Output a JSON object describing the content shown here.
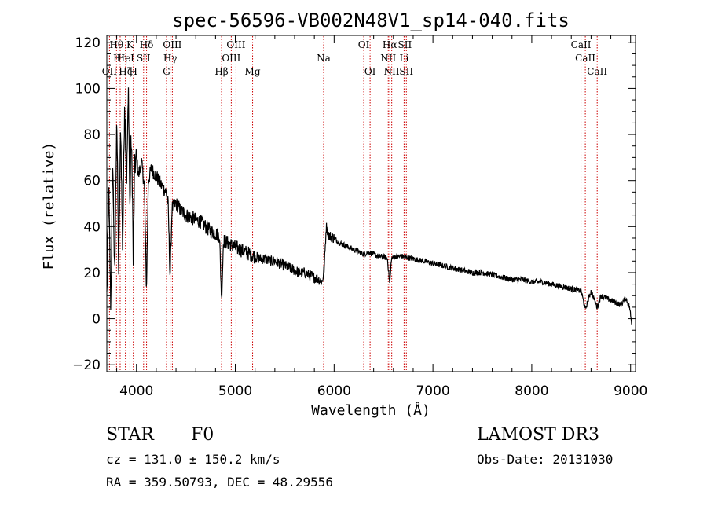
{
  "chart_data": {
    "type": "line",
    "title": "spec-56596-VB002N48V1_sp14-040.fits",
    "xlabel": "Wavelength (Å)",
    "ylabel": "Flux (relative)",
    "xlim": [
      3700,
      9050
    ],
    "ylim": [
      -23,
      123
    ],
    "xticks": [
      4000,
      5000,
      6000,
      7000,
      8000,
      9000
    ],
    "xtick_labels": [
      "4000",
      "5000",
      "6000",
      "7000",
      "8000",
      "9000"
    ],
    "yticks": [
      -20,
      0,
      20,
      40,
      60,
      80,
      100,
      120
    ],
    "ytick_labels": [
      "−20",
      "0",
      "20",
      "40",
      "60",
      "80",
      "100",
      "120"
    ],
    "series": [
      {
        "name": "flux",
        "x": [
          3700,
          3720,
          3740,
          3760,
          3780,
          3800,
          3820,
          3840,
          3860,
          3880,
          3900,
          3920,
          3933,
          3945,
          3960,
          3968,
          3980,
          4000,
          4020,
          4050,
          4080,
          4101,
          4120,
          4150,
          4200,
          4250,
          4300,
          4320,
          4340,
          4360,
          4400,
          4450,
          4500,
          4550,
          4600,
          4650,
          4700,
          4750,
          4800,
          4840,
          4861,
          4880,
          4920,
          4960,
          5000,
          5050,
          5100,
          5150,
          5200,
          5250,
          5300,
          5350,
          5400,
          5450,
          5500,
          5550,
          5600,
          5650,
          5700,
          5750,
          5800,
          5850,
          5880,
          5900,
          5920,
          5950,
          6000,
          6050,
          6100,
          6150,
          6200,
          6250,
          6300,
          6350,
          6400,
          6450,
          6500,
          6540,
          6563,
          6580,
          6620,
          6700,
          6800,
          6900,
          7000,
          7100,
          7200,
          7300,
          7400,
          7500,
          7600,
          7700,
          7800,
          7900,
          8000,
          8100,
          8200,
          8300,
          8400,
          8500,
          8542,
          8600,
          8662,
          8700,
          8750,
          8800,
          8850,
          8900,
          8950,
          8990,
          9010
        ],
        "y": [
          10,
          55,
          5,
          70,
          15,
          90,
          20,
          85,
          30,
          95,
          60,
          100,
          45,
          80,
          55,
          20,
          65,
          70,
          62,
          68,
          58,
          12,
          60,
          65,
          62,
          58,
          55,
          50,
          18,
          48,
          50,
          47,
          45,
          44,
          43,
          42,
          40,
          38,
          37,
          36,
          8,
          34,
          33,
          32,
          31,
          30,
          29,
          28,
          27,
          26,
          26,
          25,
          25,
          24,
          23,
          22,
          21,
          20,
          20,
          19,
          18,
          17,
          16,
          22,
          40,
          36,
          35,
          33,
          32,
          31,
          30,
          29,
          28,
          29,
          28,
          27,
          27,
          26,
          15,
          26,
          27,
          27,
          26,
          25,
          24,
          23,
          22,
          21,
          20,
          20,
          19,
          18,
          17,
          17,
          16,
          16,
          15,
          14,
          13,
          12,
          4,
          12,
          5,
          10,
          9,
          8,
          7,
          6,
          9,
          5,
          -2
        ]
      }
    ],
    "annotations": {
      "lines": [
        {
          "label": "OII",
          "x": 3727,
          "row": 3
        },
        {
          "label": "Hθ",
          "x": 3798,
          "row": 1
        },
        {
          "label": "Hη",
          "x": 3835,
          "row": 2
        },
        {
          "label": "Hζ",
          "x": 3889,
          "row": 3
        },
        {
          "label": "HeI",
          "x": 3889,
          "row": 2
        },
        {
          "label": "K",
          "x": 3934,
          "row": 1
        },
        {
          "label": "H",
          "x": 3968,
          "row": 3
        },
        {
          "label": "SII",
          "x": 4072,
          "row": 2
        },
        {
          "label": "Hδ",
          "x": 4102,
          "row": 1
        },
        {
          "label": "G",
          "x": 4304,
          "row": 3
        },
        {
          "label": "Hγ",
          "x": 4341,
          "row": 2
        },
        {
          "label": "OIII",
          "x": 4363,
          "row": 1
        },
        {
          "label": "Hβ",
          "x": 4861,
          "row": 3
        },
        {
          "label": "OIII",
          "x": 4959,
          "row": 2
        },
        {
          "label": "OIII",
          "x": 5007,
          "row": 1
        },
        {
          "label": "Mg",
          "x": 5175,
          "row": 3
        },
        {
          "label": "Na",
          "x": 5894,
          "row": 2
        },
        {
          "label": "OI",
          "x": 6300,
          "row": 1
        },
        {
          "label": "OI",
          "x": 6364,
          "row": 3
        },
        {
          "label": "NII",
          "x": 6548,
          "row": 2
        },
        {
          "label": "Hα",
          "x": 6563,
          "row": 1
        },
        {
          "label": "NII",
          "x": 6583,
          "row": 3
        },
        {
          "label": "Li",
          "x": 6708,
          "row": 2
        },
        {
          "label": "SII",
          "x": 6716,
          "row": 1
        },
        {
          "label": "SII",
          "x": 6731,
          "row": 3
        },
        {
          "label": "CaII",
          "x": 8498,
          "row": 1
        },
        {
          "label": "CaII",
          "x": 8542,
          "row": 2
        },
        {
          "label": "CaII",
          "x": 8662,
          "row": 3
        }
      ]
    }
  },
  "info": {
    "object_class": "STAR",
    "subclass": "F0",
    "survey": "LAMOST DR3",
    "velocity": "cz = 131.0 ± 150.2 km/s",
    "obs_date": "Obs-Date: 20131030",
    "coords": "RA = 359.50793, DEC =  48.29556"
  },
  "colors": {
    "spectrum": "#000000",
    "line_marker": "#cc0000",
    "background": "#ffffff"
  }
}
